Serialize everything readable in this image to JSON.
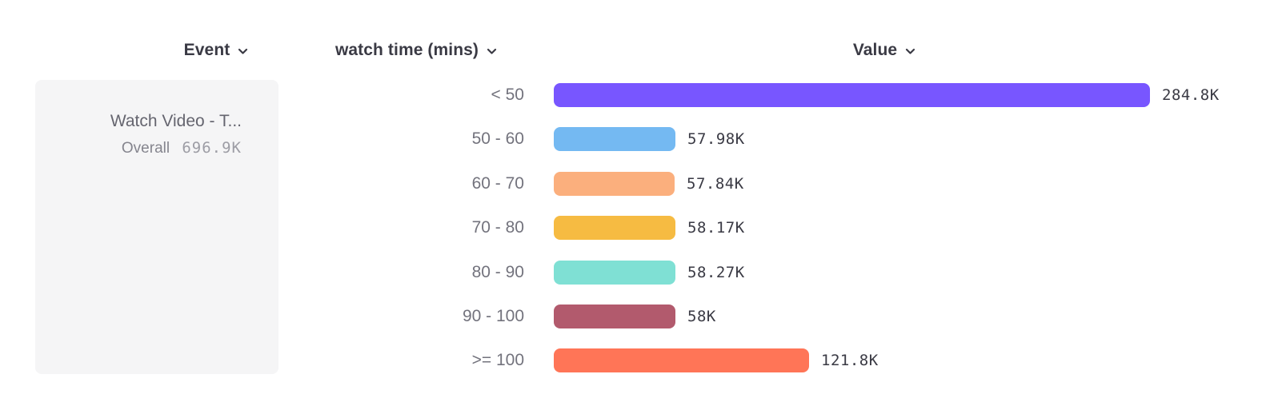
{
  "header": {
    "columns": [
      {
        "label": "Event"
      },
      {
        "label": "watch time (mins)"
      },
      {
        "label": "Value"
      }
    ]
  },
  "event_card": {
    "title": "Watch Video - T...",
    "overall_label": "Overall",
    "overall_value": "696.9K"
  },
  "chart_data": {
    "type": "bar",
    "orientation": "horizontal",
    "breakdown_property": "watch time (mins)",
    "categories": [
      "< 50",
      "50 - 60",
      "60 - 70",
      "70 - 80",
      "80 - 90",
      "90 - 100",
      ">= 100"
    ],
    "values": [
      284800,
      57980,
      57840,
      58170,
      58270,
      58000,
      121800
    ],
    "value_labels": [
      "284.8K",
      "57.98K",
      "57.84K",
      "58.17K",
      "58.27K",
      "58K",
      "121.8K"
    ],
    "bar_colors": [
      "#7856FF",
      "#74B9F2",
      "#FBAF7D",
      "#F6BB42",
      "#7FE0D4",
      "#B25A6D",
      "#FF7557"
    ],
    "max_value": 284800,
    "legend": "none",
    "grid": false
  },
  "colors": {
    "background": "#FFFFFF",
    "header_text": "#3A3A44",
    "category_text": "#73737D",
    "value_text": "#3A3A44",
    "card_background": "#F5F5F6",
    "card_title_text": "#65656F",
    "overall_label_text": "#85858E",
    "overall_value_text": "#9D9DA5"
  }
}
